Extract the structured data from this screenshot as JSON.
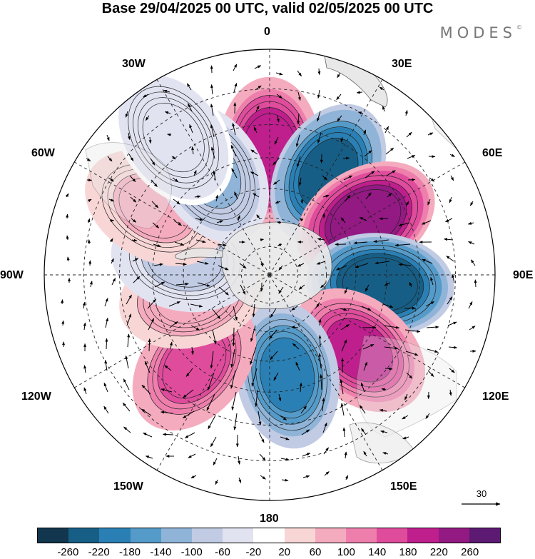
{
  "header": {
    "title": "Base 29/04/2025 00 UTC, valid 02/05/2025 00 UTC",
    "brand": "MODES",
    "brand_mark": "©"
  },
  "map": {
    "projection": "south polar stereographic",
    "longitude_labels": [
      "0",
      "30E",
      "60E",
      "90E",
      "120E",
      "150E",
      "180",
      "150W",
      "120W",
      "90W",
      "60W",
      "30W"
    ],
    "vector_reference": "30",
    "anomalies": [
      {
        "lon": 0,
        "lat": -48,
        "value": 210
      },
      {
        "lon": 30,
        "lat": -50,
        "value": -230
      },
      {
        "lon": 60,
        "lat": -52,
        "value": 250
      },
      {
        "lon": 95,
        "lat": -52,
        "value": -260
      },
      {
        "lon": 130,
        "lat": -50,
        "value": 190
      },
      {
        "lon": 170,
        "lat": -55,
        "value": -200
      },
      {
        "lon": -140,
        "lat": -50,
        "value": 170
      },
      {
        "lon": -105,
        "lat": -62,
        "value": 90
      },
      {
        "lon": -80,
        "lat": -60,
        "value": -70
      },
      {
        "lon": -60,
        "lat": -45,
        "value": 70
      },
      {
        "lon": -30,
        "lat": -50,
        "value": -110
      },
      {
        "lon": -35,
        "lat": -35,
        "value": -50
      }
    ]
  },
  "legend": {
    "levels": [
      "-260",
      "-220",
      "-180",
      "-140",
      "-100",
      "-60",
      "-20",
      "20",
      "60",
      "100",
      "140",
      "180",
      "220",
      "260"
    ],
    "colors": [
      "#12364d",
      "#175e86",
      "#2a80b4",
      "#559bc9",
      "#8fb4d8",
      "#c1cbe4",
      "#e2e3f1",
      "#ffffff",
      "#f8d6d6",
      "#f5abbe",
      "#ee7fad",
      "#df4c9c",
      "#be1f8c",
      "#931983",
      "#5c1a73"
    ]
  }
}
